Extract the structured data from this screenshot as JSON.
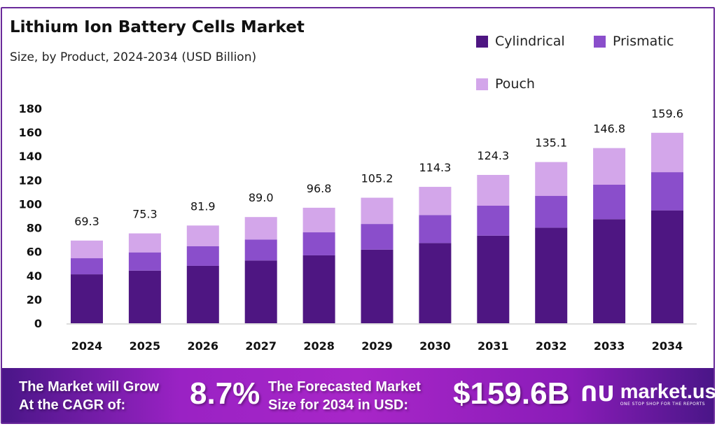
{
  "header": {
    "title": "Lithium Ion Battery Cells Market",
    "subtitle": "Size, by Product, 2024-2034 (USD Billion)"
  },
  "chart_data": {
    "type": "bar",
    "stacked": true,
    "title": "Lithium Ion Battery Cells Market",
    "subtitle": "Size, by Product, 2024-2034 (USD Billion)",
    "categories": [
      "2024",
      "2025",
      "2026",
      "2027",
      "2028",
      "2029",
      "2030",
      "2031",
      "2032",
      "2033",
      "2034"
    ],
    "series": [
      {
        "name": "Cylindrical",
        "color": "#4e1682",
        "values": [
          41.0,
          44.1,
          48.1,
          52.6,
          56.9,
          61.7,
          67.2,
          73.4,
          80.1,
          87.2,
          94.6
        ]
      },
      {
        "name": "Prismatic",
        "color": "#8a4ecb",
        "values": [
          13.5,
          15.3,
          16.4,
          17.6,
          19.3,
          21.5,
          23.5,
          25.1,
          26.6,
          28.9,
          32.0
        ]
      },
      {
        "name": "Pouch",
        "color": "#d3a6ea",
        "values": [
          14.8,
          15.9,
          17.4,
          18.8,
          20.6,
          22.0,
          23.6,
          25.8,
          28.4,
          30.7,
          33.0
        ]
      }
    ],
    "totals": [
      "69.3",
      "75.3",
      "81.9",
      "89.0",
      "96.8",
      "105.2",
      "114.3",
      "124.3",
      "135.1",
      "146.8",
      "159.6"
    ],
    "yticks": [
      "0",
      "20",
      "40",
      "60",
      "80",
      "100",
      "120",
      "140",
      "160",
      "180"
    ],
    "ylim": [
      0,
      180
    ],
    "grid": false,
    "legend": "top-right"
  },
  "footer": {
    "cagr_label_1": "The Market will Grow",
    "cagr_label_2": "At the CAGR of:",
    "cagr_value": "8.7%",
    "forecast_label_1": "The Forecasted Market",
    "forecast_label_2": "Size for 2034 in USD:",
    "forecast_value": "$159.6B",
    "logo_text": "market.us",
    "logo_tagline": "ONE STOP SHOP FOR THE REPORTS",
    "logo_color": "#ffffff"
  }
}
